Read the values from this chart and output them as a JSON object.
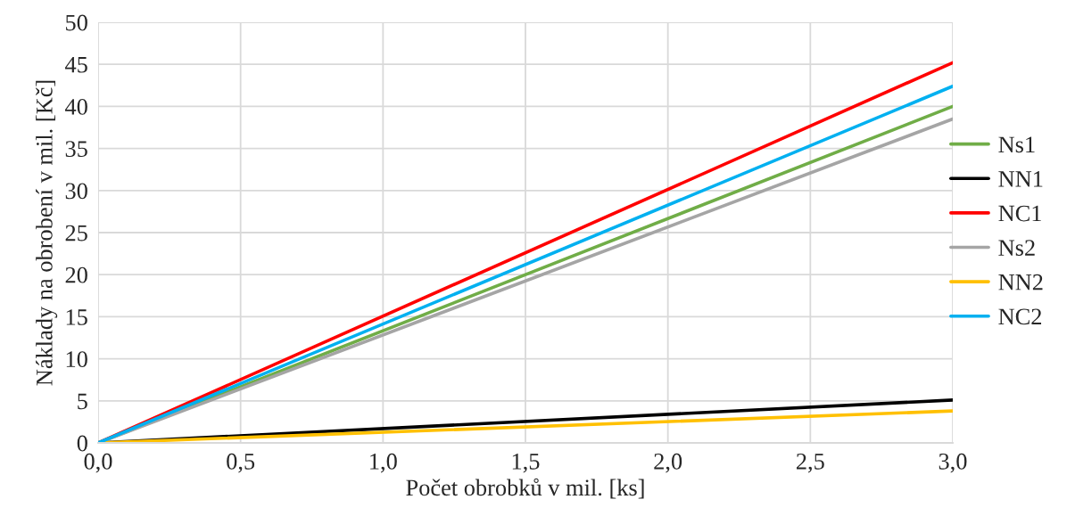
{
  "chart_data": {
    "type": "line",
    "xlabel": "Počet obrobků v mil. [ks]",
    "ylabel": "Náklady na obrobení v mil. [Kč]",
    "x": [
      0,
      3
    ],
    "series": [
      {
        "name": "Ns1",
        "color": "#70ad47",
        "values": [
          0,
          40.0
        ]
      },
      {
        "name": "NN1",
        "color": "#000000",
        "values": [
          0,
          5.1
        ]
      },
      {
        "name": "NC1",
        "color": "#ff0000",
        "values": [
          0,
          45.2
        ]
      },
      {
        "name": "Ns2",
        "color": "#a5a5a5",
        "values": [
          0,
          38.5
        ]
      },
      {
        "name": "NN2",
        "color": "#ffc000",
        "values": [
          0,
          3.8
        ]
      },
      {
        "name": "NC2",
        "color": "#00b0f0",
        "values": [
          0,
          42.4
        ]
      }
    ],
    "xlim": [
      0,
      3
    ],
    "xticks": [
      {
        "value": 0,
        "label": "0,0"
      },
      {
        "value": 0.5,
        "label": "0,5"
      },
      {
        "value": 1,
        "label": "1,0"
      },
      {
        "value": 1.5,
        "label": "1,5"
      },
      {
        "value": 2,
        "label": "2,0"
      },
      {
        "value": 2.5,
        "label": "2,5"
      },
      {
        "value": 3,
        "label": "3,0"
      }
    ],
    "ylim": [
      0,
      50
    ],
    "yticks": [
      0,
      5,
      10,
      15,
      20,
      25,
      30,
      35,
      40,
      45,
      50
    ],
    "grid": true,
    "legend": "right",
    "marker": "none",
    "line_style": "solid"
  }
}
